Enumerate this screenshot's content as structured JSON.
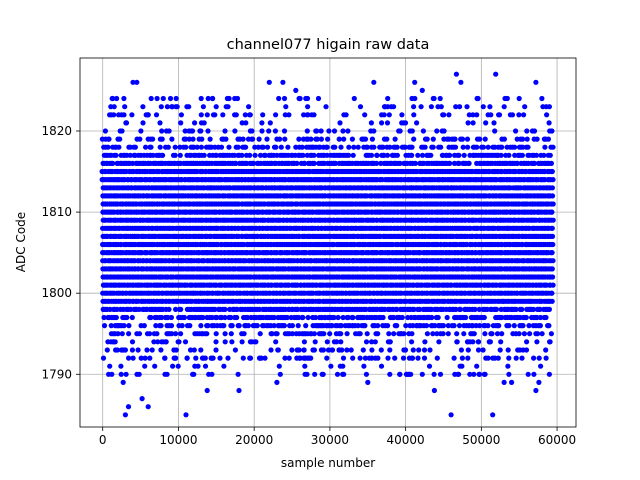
{
  "chart_data": {
    "type": "scatter",
    "title": "channel077 higain raw data",
    "xlabel": "sample number",
    "ylabel": "ADC Code",
    "xlim": [
      -3000,
      62500
    ],
    "ylim": [
      1783.5,
      1829
    ],
    "x_ticks": [
      0,
      10000,
      20000,
      30000,
      40000,
      50000,
      60000
    ],
    "x_tick_labels": [
      "0",
      "10000",
      "20000",
      "30000",
      "40000",
      "50000",
      "60000"
    ],
    "y_ticks": [
      1790,
      1800,
      1810,
      1820
    ],
    "y_tick_labels": [
      "1790",
      "1800",
      "1810",
      "1820"
    ],
    "grid": true,
    "marker_color": "#0000ff",
    "sample_count": 59400,
    "series": [
      {
        "values_dense": {
          "x_range": [
            0,
            59400
          ],
          "y_min": 1795,
          "y_max": 1821,
          "y_center": 1807
        },
        "outliers": [
          [
            3000,
            1785
          ],
          [
            11000,
            1785
          ],
          [
            46000,
            1785
          ],
          [
            51500,
            1785
          ],
          [
            3400,
            1786
          ],
          [
            6000,
            1786
          ],
          [
            5200,
            1787
          ],
          [
            2700,
            1789
          ],
          [
            13800,
            1788
          ],
          [
            18000,
            1788
          ],
          [
            43800,
            1788
          ],
          [
            57200,
            1788
          ],
          [
            57600,
            1789
          ],
          [
            23000,
            1789
          ],
          [
            35000,
            1789
          ],
          [
            53000,
            1789
          ],
          [
            54000,
            1789
          ],
          [
            100,
            1792
          ],
          [
            1200,
            1790
          ],
          [
            8500,
            1790
          ],
          [
            14000,
            1790
          ],
          [
            16000,
            1791
          ],
          [
            28000,
            1790
          ],
          [
            31000,
            1790
          ],
          [
            40200,
            1790
          ],
          [
            47000,
            1790
          ],
          [
            49000,
            1790
          ],
          [
            50500,
            1790
          ],
          [
            4000,
            1826
          ],
          [
            4500,
            1826
          ],
          [
            22000,
            1826
          ],
          [
            23800,
            1826
          ],
          [
            35800,
            1826
          ],
          [
            41200,
            1826
          ],
          [
            46700,
            1827
          ],
          [
            47300,
            1826
          ],
          [
            51900,
            1827
          ],
          [
            57200,
            1826
          ],
          [
            25500,
            1825
          ],
          [
            24000,
            1824
          ],
          [
            13000,
            1824
          ],
          [
            14500,
            1824
          ],
          [
            8000,
            1824
          ],
          [
            17800,
            1824
          ],
          [
            28500,
            1824
          ],
          [
            55000,
            1824
          ],
          [
            58000,
            1824
          ],
          [
            42200,
            1825
          ]
        ]
      }
    ]
  }
}
